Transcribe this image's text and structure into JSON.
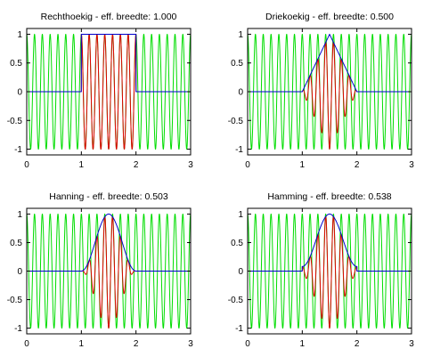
{
  "chart_data": [
    {
      "type": "line",
      "window": "rect",
      "title": "Rechthoekig - eff. breedte: 1.000",
      "xlabel": "",
      "ylabel": "",
      "xlim": [
        0,
        3
      ],
      "ylim": [
        -1.1,
        1.1
      ],
      "xticks": [
        "0",
        "1",
        "2",
        "3"
      ],
      "yticks": [
        "-1",
        "-0.5",
        "0",
        "0.5",
        "1"
      ],
      "signal_frequency": 7,
      "window_support": [
        1,
        2
      ],
      "series": [
        {
          "color": "#00dd00",
          "role": "signal",
          "expr": "cos(2π·7·t)"
        },
        {
          "color": "#e00000",
          "role": "windowed signal",
          "expr": "w(t)·cos(2π·7·t)"
        },
        {
          "color": "#0000cc",
          "role": "window",
          "expr": "rectangular, 1 on [1,2]"
        }
      ]
    },
    {
      "type": "line",
      "window": "triangle",
      "title": "Driekoekig - eff. breedte: 0.500",
      "xlabel": "",
      "ylabel": "",
      "xlim": [
        0,
        3
      ],
      "ylim": [
        -1.1,
        1.1
      ],
      "xticks": [
        "0",
        "1",
        "2",
        "3"
      ],
      "yticks": [
        "-1",
        "-0.5",
        "0",
        "0.5",
        "1"
      ],
      "signal_frequency": 7,
      "window_support": [
        1,
        2
      ],
      "series": [
        {
          "color": "#00dd00",
          "role": "signal",
          "expr": "cos(2π·7·t)"
        },
        {
          "color": "#e00000",
          "role": "windowed signal",
          "expr": "w(t)·cos(2π·7·t)"
        },
        {
          "color": "#0000cc",
          "role": "window",
          "expr": "triangular, peak 1 at t=1.5"
        }
      ]
    },
    {
      "type": "line",
      "window": "hanning",
      "title": "Hanning - eff. breedte: 0.503",
      "xlabel": "",
      "ylabel": "",
      "xlim": [
        0,
        3
      ],
      "ylim": [
        -1.1,
        1.1
      ],
      "xticks": [
        "0",
        "1",
        "2",
        "3"
      ],
      "yticks": [
        "-1",
        "-0.5",
        "0",
        "0.5",
        "1"
      ],
      "signal_frequency": 7,
      "window_support": [
        1,
        2
      ],
      "series": [
        {
          "color": "#00dd00",
          "role": "signal",
          "expr": "cos(2π·7·t)"
        },
        {
          "color": "#e00000",
          "role": "windowed signal",
          "expr": "w(t)·cos(2π·7·t)"
        },
        {
          "color": "#0000cc",
          "role": "window",
          "expr": "0.5 - 0.5·cos(2π(t-1))"
        }
      ]
    },
    {
      "type": "line",
      "window": "hamming",
      "title": "Hamming - eff. breedte: 0.538",
      "xlabel": "",
      "ylabel": "",
      "xlim": [
        0,
        3
      ],
      "ylim": [
        -1.1,
        1.1
      ],
      "xticks": [
        "0",
        "1",
        "2",
        "3"
      ],
      "yticks": [
        "-1",
        "-0.5",
        "0",
        "0.5",
        "1"
      ],
      "signal_frequency": 7,
      "window_support": [
        1,
        2
      ],
      "series": [
        {
          "color": "#00dd00",
          "role": "signal",
          "expr": "cos(2π·7·t)"
        },
        {
          "color": "#e00000",
          "role": "windowed signal",
          "expr": "w(t)·cos(2π·7·t)"
        },
        {
          "color": "#0000cc",
          "role": "window",
          "expr": "0.54 - 0.46·cos(2π(t-1))"
        }
      ]
    }
  ]
}
